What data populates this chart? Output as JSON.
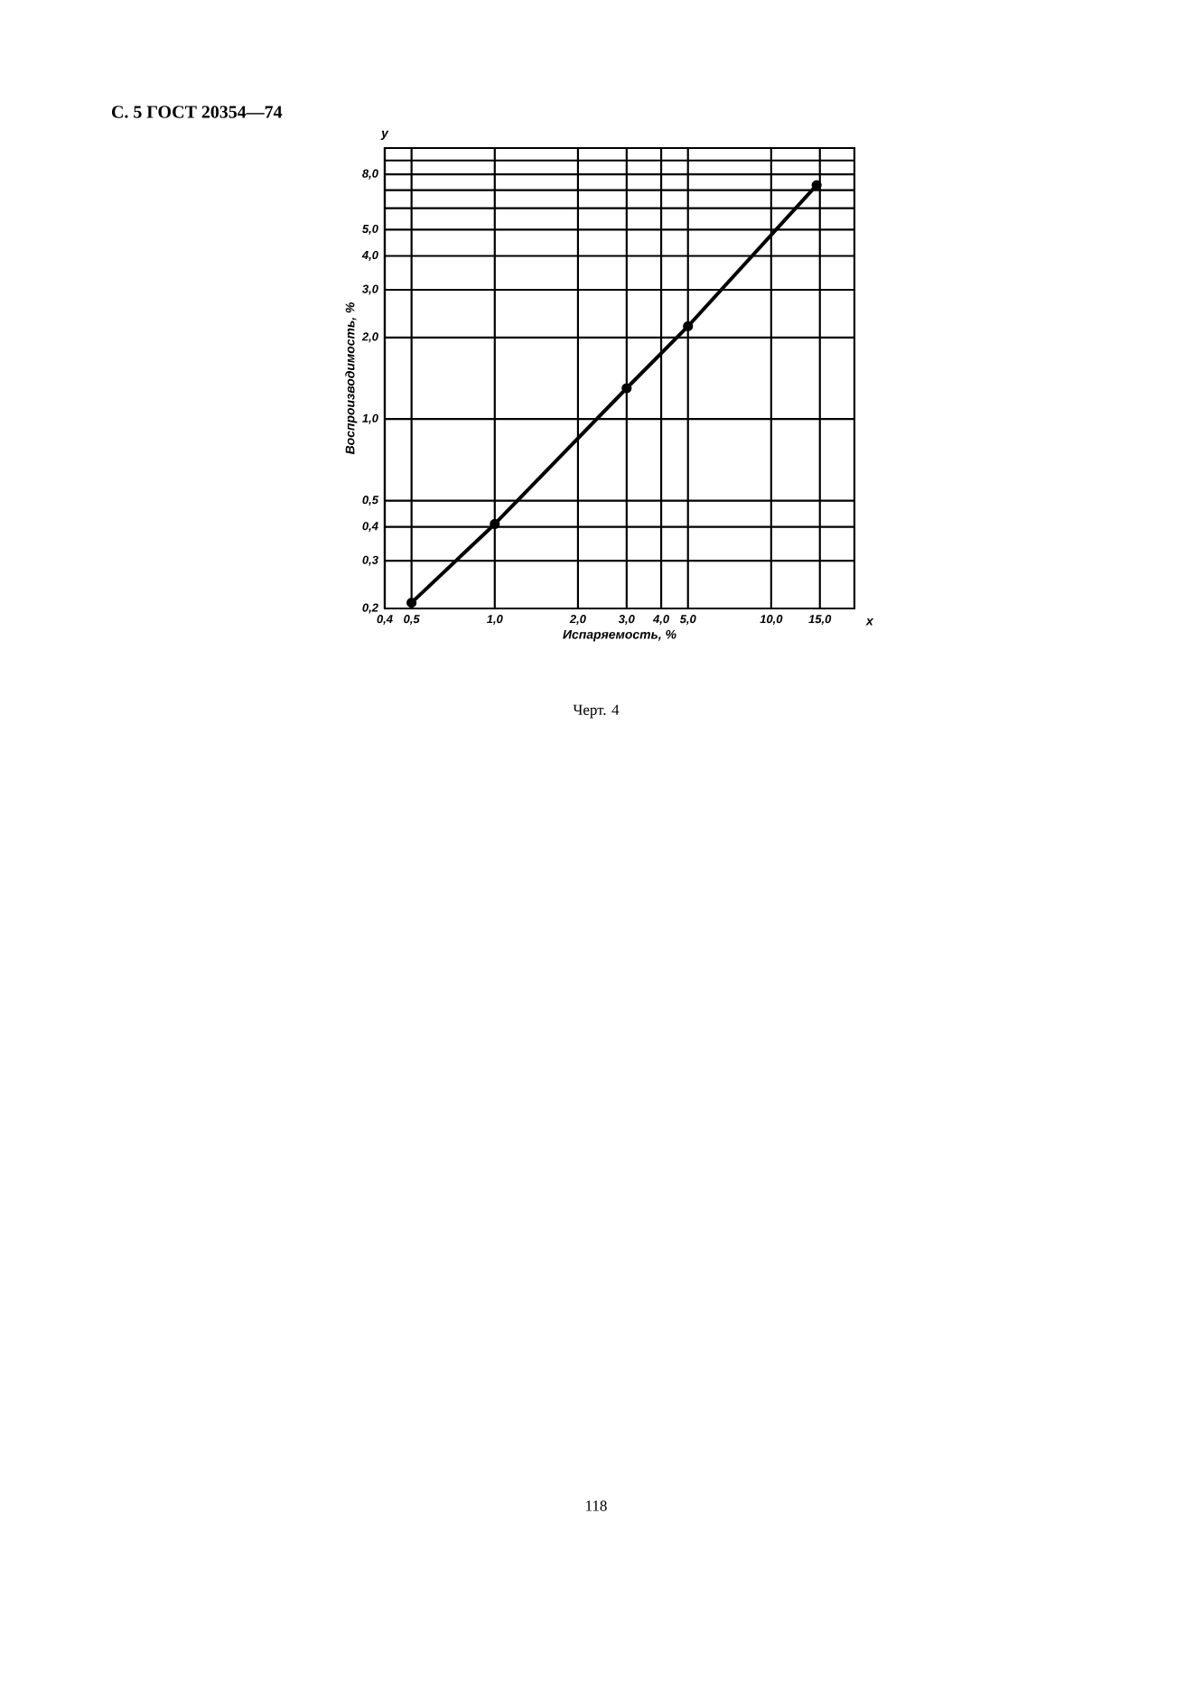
{
  "chart_data": {
    "type": "line",
    "title": "С. 5 ГОСТ 20354—74",
    "xlabel": "Испаряемость, %",
    "ylabel": "Воспроизводимость, %",
    "annotations": [
      "y",
      "x",
      "Черт. 4",
      "118"
    ],
    "log": "xy",
    "grid": true,
    "marker": "circle",
    "line_style": "solid",
    "x": [
      0.5,
      1.0,
      3.0,
      5.0,
      14.6
    ],
    "series": [
      {
        "color": "#000000",
        "values": [
          0.21,
          0.41,
          1.3,
          2.2,
          7.3
        ]
      }
    ],
    "xlim": [
      0.4,
      20
    ],
    "ylim": [
      0.2,
      10
    ],
    "xticks": [
      {
        "value": 0.4,
        "label": "0,4"
      },
      {
        "value": 0.5,
        "label": "0,5"
      },
      {
        "value": 1,
        "label": "1,0"
      },
      {
        "value": 2,
        "label": "2,0"
      },
      {
        "value": 3,
        "label": "3,0"
      },
      {
        "value": 4,
        "label": "4,0"
      },
      {
        "value": 5,
        "label": "5,0"
      },
      {
        "value": 10,
        "label": "10,0"
      },
      {
        "value": 15,
        "label": "15,0"
      }
    ],
    "yticks": [
      {
        "value": 0.2,
        "label": "0,2"
      },
      {
        "value": 0.3,
        "label": "0,3"
      },
      {
        "value": 0.4,
        "label": "0,4"
      },
      {
        "value": 0.5,
        "label": "0,5"
      },
      {
        "value": 1,
        "label": "1,0"
      },
      {
        "value": 2,
        "label": "2,0"
      },
      {
        "value": 3,
        "label": "3,0"
      },
      {
        "value": 4,
        "label": "4,0"
      },
      {
        "value": 5,
        "label": "5,0"
      },
      {
        "value": 6,
        "label": null
      },
      {
        "value": 7,
        "label": null
      },
      {
        "value": 8,
        "label": "8,0"
      },
      {
        "value": 9,
        "label": null
      }
    ]
  }
}
